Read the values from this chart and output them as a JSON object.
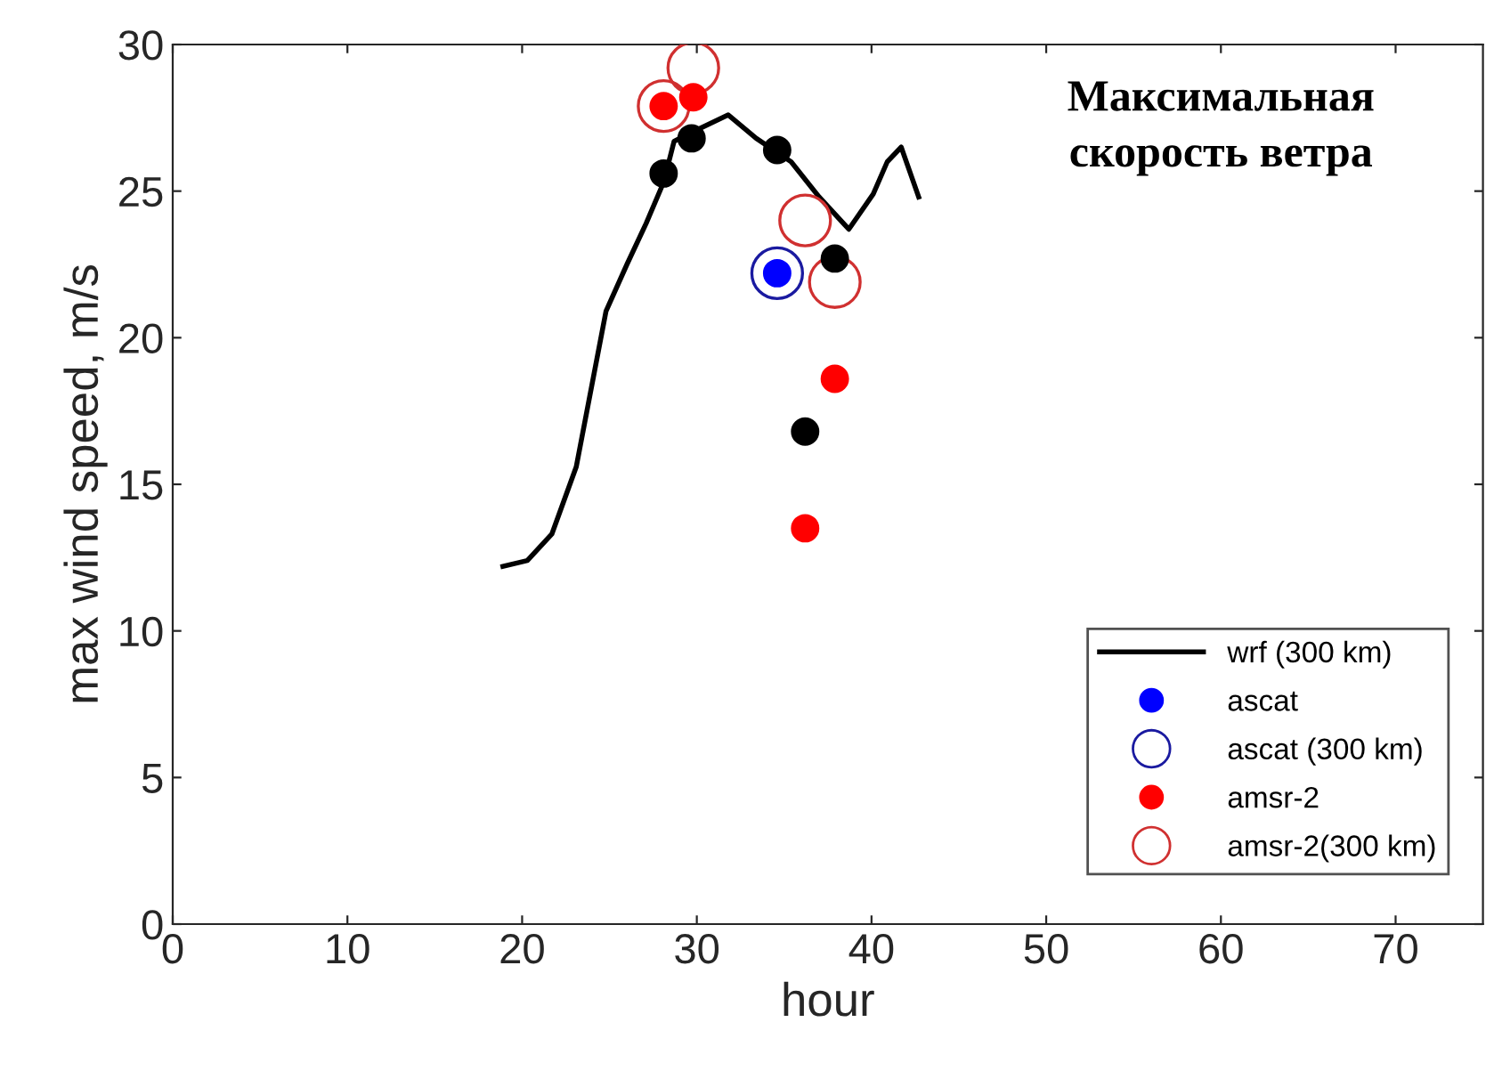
{
  "chart_data": {
    "type": "line",
    "title": "Максимальная\nскорость ветра",
    "xlabel": "hour",
    "ylabel": "max wind speed, m/s",
    "xlim": [
      0,
      75
    ],
    "ylim": [
      0,
      30
    ],
    "xticks": [
      0,
      10,
      20,
      30,
      40,
      50,
      60,
      70
    ],
    "yticks": [
      0,
      5,
      10,
      15,
      20,
      25,
      30
    ],
    "grid": false,
    "legend": "bottom right",
    "series": [
      {
        "name": "wrf (300 km)",
        "color": "#000000",
        "marker": "none",
        "line_style": "solid",
        "x": [
          18.9,
          20.3,
          21.7,
          23.1,
          24.8,
          26.0,
          27.1,
          28.1,
          28.7,
          29.7,
          31.8,
          33.4,
          35.4,
          37.0,
          38.7,
          40.1,
          40.9,
          41.7,
          42.7
        ],
        "values": [
          12.2,
          12.4,
          13.3,
          15.6,
          20.9,
          22.5,
          23.9,
          25.3,
          26.7,
          27.0,
          27.6,
          26.8,
          26.0,
          24.8,
          23.7,
          24.9,
          26.0,
          26.5,
          24.8
        ]
      },
      {
        "type": "scatter",
        "color": "#000000",
        "marker": "circle",
        "x": [
          28.1,
          29.7,
          34.6,
          37.9,
          36.2
        ],
        "values": [
          25.6,
          26.8,
          26.4,
          22.7,
          16.8
        ]
      },
      {
        "name": "ascat",
        "type": "scatter",
        "color": "#0000ff",
        "marker": "circle",
        "x": [
          34.6
        ],
        "values": [
          22.2
        ]
      },
      {
        "name": "ascat (300 km)",
        "type": "bubble",
        "color": "#1a1aa0",
        "x": [
          34.6
        ],
        "values": [
          22.2
        ],
        "sizes": [
          1
        ]
      },
      {
        "name": "amsr-2",
        "type": "scatter",
        "color": "#ff0000",
        "marker": "circle",
        "x": [
          28.1,
          29.8,
          37.9,
          36.2
        ],
        "values": [
          27.9,
          28.2,
          18.6,
          13.5
        ]
      },
      {
        "name": "amsr-2(300 km)",
        "type": "bubble",
        "color": "#d03030",
        "x": [
          28.1,
          29.8,
          36.2,
          37.9
        ],
        "values": [
          27.9,
          29.2,
          24.0,
          21.9
        ],
        "sizes": [
          1,
          1,
          1,
          1
        ]
      }
    ]
  }
}
